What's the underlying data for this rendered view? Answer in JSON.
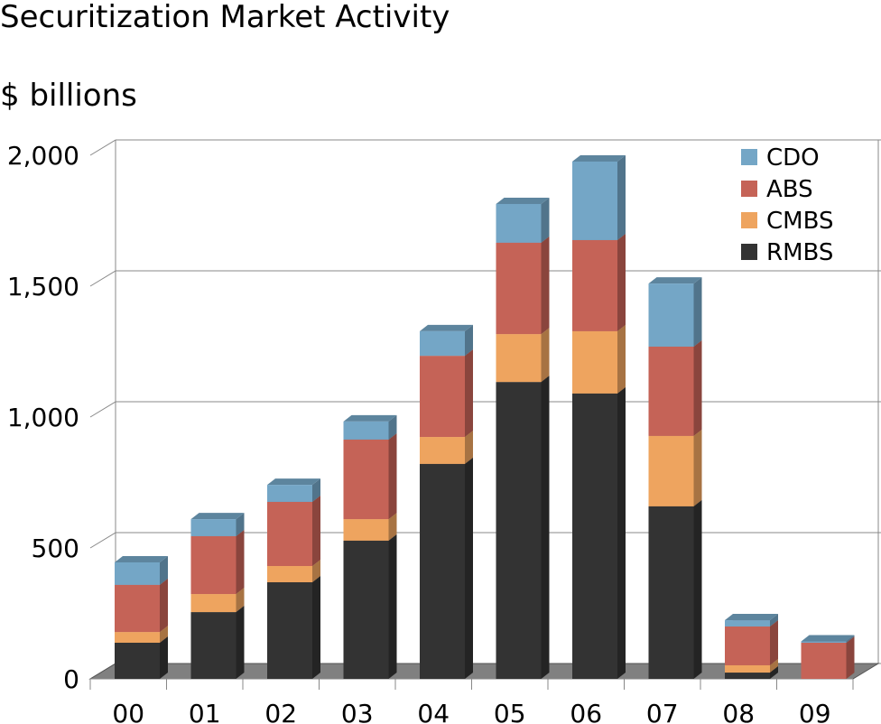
{
  "chart_data": {
    "type": "bar",
    "stacked": true,
    "title": "Securitization Market Activity",
    "subtitle": "$ billions",
    "categories": [
      "00",
      "01",
      "02",
      "03",
      "04",
      "05",
      "06",
      "07",
      "08",
      "09"
    ],
    "series": [
      {
        "name": "RMBS",
        "color": "#333333",
        "values": [
          138,
          255,
          369,
          528,
          821,
          1134,
          1090,
          659,
          24,
          0
        ]
      },
      {
        "name": "CMBS",
        "color": "#eea45f",
        "values": [
          41,
          69,
          62,
          82,
          103,
          183,
          238,
          269,
          28,
          0
        ]
      },
      {
        "name": "ABS",
        "color": "#c56357",
        "values": [
          180,
          221,
          245,
          304,
          310,
          349,
          348,
          341,
          148,
          138
        ]
      },
      {
        "name": "CDO",
        "color": "#74a6c6",
        "values": [
          86,
          65,
          65,
          69,
          94,
          148,
          300,
          241,
          24,
          5
        ]
      }
    ],
    "ylim": [
      0,
      2000
    ],
    "yticks": [
      0,
      500,
      {
        "value": 1000,
        "label": "1,000"
      },
      {
        "value": 1500,
        "label": "1,500"
      },
      {
        "value": 2000,
        "label": "2,000"
      }
    ],
    "grid": true,
    "legend": "top-right"
  }
}
